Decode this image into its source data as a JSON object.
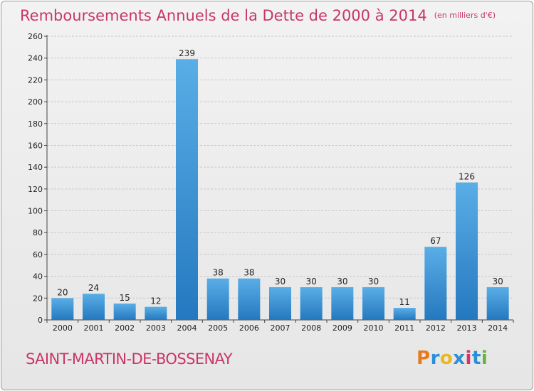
{
  "title": "Remboursements Annuels de la Dette de 2000 à 2014",
  "subtitle": "(en milliers d'€)",
  "commune": "SAINT-MARTIN-DE-BOSSENAY",
  "logo": {
    "letters": [
      "P",
      "r",
      "o",
      "x",
      "i",
      "t",
      "i"
    ],
    "colors": [
      "#e87a1e",
      "#2a8fd4",
      "#e8b820",
      "#2a8fd4",
      "#d8326a",
      "#2a8fd4",
      "#64b43c"
    ]
  },
  "colors": {
    "bar_light": "#5aaee6",
    "bar_dark": "#2478bf",
    "text_accent": "#c8366a"
  },
  "chart_data": {
    "type": "bar",
    "categories": [
      "2000",
      "2001",
      "2002",
      "2003",
      "2004",
      "2005",
      "2006",
      "2007",
      "2008",
      "2009",
      "2010",
      "2011",
      "2012",
      "2013",
      "2014"
    ],
    "values": [
      20,
      24,
      15,
      12,
      239,
      38,
      38,
      30,
      30,
      30,
      30,
      11,
      67,
      126,
      30
    ],
    "ylim": [
      0,
      260
    ],
    "yticks": [
      0,
      20,
      40,
      60,
      80,
      100,
      120,
      140,
      160,
      180,
      200,
      220,
      240,
      260
    ],
    "grid": true,
    "legend": "none"
  }
}
